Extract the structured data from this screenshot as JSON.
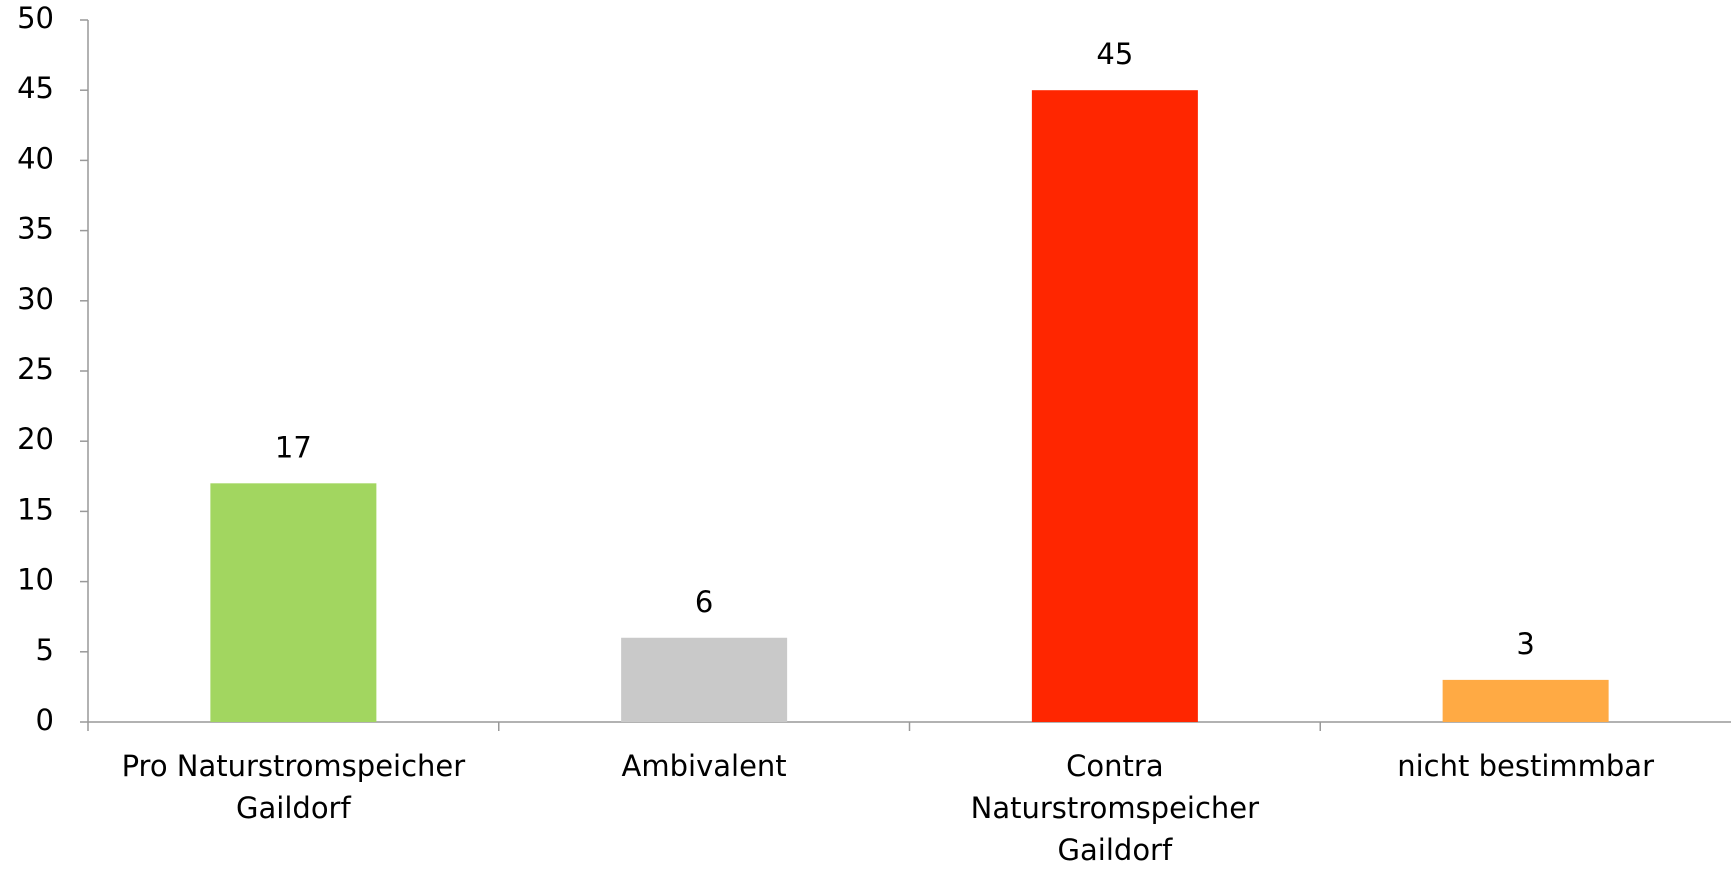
{
  "chart_data": {
    "type": "bar",
    "categories": [
      "Pro Naturstromspeicher\nGaildorf",
      "Ambivalent",
      "Contra\nNaturstromspeicher\nGaildorf",
      "nicht bestimmbar"
    ],
    "values": [
      17,
      6,
      45,
      3
    ],
    "colors": [
      "#a2d660",
      "#c9c9c9",
      "#ff2600",
      "#ffaa44"
    ],
    "ylim": [
      0,
      50
    ],
    "yticks": [
      0,
      5,
      10,
      15,
      20,
      25,
      30,
      35,
      40,
      45,
      50
    ],
    "grid": false
  }
}
